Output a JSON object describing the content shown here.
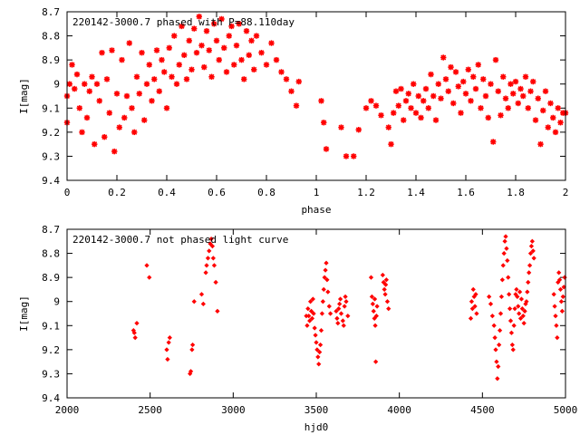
{
  "figure": {
    "background": "#ffffff",
    "marker_color": "#ff0000",
    "panels": [
      "phased",
      "unphased"
    ]
  },
  "chart_data": [
    {
      "type": "scatter",
      "title": "220142-3000.7 phased with P=88.110day",
      "xlabel": "phase",
      "ylabel": "I[mag]",
      "xlim": [
        0,
        2
      ],
      "ylim": [
        9.4,
        8.7
      ],
      "y_inverted": true,
      "xticks": [
        0,
        0.2,
        0.4,
        0.6,
        0.8,
        1,
        1.2,
        1.4,
        1.6,
        1.8,
        2
      ],
      "xtick_labels": [
        "0",
        "0.2",
        "0.4",
        "0.6",
        "0.8",
        "1",
        "1.2",
        "1.4",
        "1.6",
        "1.8",
        "2"
      ],
      "yticks": [
        8.7,
        8.8,
        8.9,
        9.0,
        9.1,
        9.2,
        9.3,
        9.4
      ],
      "ytick_labels": [
        "8.7",
        "8.8",
        "8.9",
        "9",
        "9.1",
        "9.2",
        "9.3",
        "9.4"
      ],
      "grid": false,
      "legend": "none",
      "marker": "star",
      "color": "#ff0000",
      "points": [
        [
          0.0,
          9.05
        ],
        [
          0.0,
          9.16
        ],
        [
          0.01,
          9.0
        ],
        [
          0.02,
          8.92
        ],
        [
          0.03,
          9.02
        ],
        [
          0.04,
          8.96
        ],
        [
          0.05,
          9.1
        ],
        [
          0.06,
          9.2
        ],
        [
          0.07,
          9.0
        ],
        [
          0.08,
          9.14
        ],
        [
          0.09,
          9.03
        ],
        [
          0.1,
          8.97
        ],
        [
          0.11,
          9.25
        ],
        [
          0.12,
          9.0
        ],
        [
          0.13,
          9.07
        ],
        [
          0.14,
          8.87
        ],
        [
          0.15,
          9.22
        ],
        [
          0.16,
          8.98
        ],
        [
          0.17,
          9.12
        ],
        [
          0.18,
          8.86
        ],
        [
          0.19,
          9.28
        ],
        [
          0.2,
          9.04
        ],
        [
          0.21,
          9.18
        ],
        [
          0.22,
          8.9
        ],
        [
          0.23,
          9.14
        ],
        [
          0.24,
          9.05
        ],
        [
          0.25,
          8.83
        ],
        [
          0.26,
          9.1
        ],
        [
          0.27,
          9.2
        ],
        [
          0.28,
          8.97
        ],
        [
          0.29,
          9.04
        ],
        [
          0.3,
          8.87
        ],
        [
          0.31,
          9.15
        ],
        [
          0.32,
          9.0
        ],
        [
          0.33,
          8.92
        ],
        [
          0.34,
          9.07
        ],
        [
          0.35,
          8.98
        ],
        [
          0.36,
          8.86
        ],
        [
          0.37,
          9.03
        ],
        [
          0.38,
          8.9
        ],
        [
          0.39,
          8.95
        ],
        [
          0.4,
          9.1
        ],
        [
          0.41,
          8.85
        ],
        [
          0.42,
          8.97
        ],
        [
          0.43,
          8.8
        ],
        [
          0.44,
          9.0
        ],
        [
          0.45,
          8.92
        ],
        [
          0.46,
          8.76
        ],
        [
          0.47,
          8.88
        ],
        [
          0.48,
          8.98
        ],
        [
          0.49,
          8.82
        ],
        [
          0.5,
          8.94
        ],
        [
          0.51,
          8.77
        ],
        [
          0.52,
          8.87
        ],
        [
          0.53,
          8.72
        ],
        [
          0.54,
          8.84
        ],
        [
          0.55,
          8.93
        ],
        [
          0.56,
          8.78
        ],
        [
          0.57,
          8.86
        ],
        [
          0.58,
          8.97
        ],
        [
          0.59,
          8.75
        ],
        [
          0.6,
          8.82
        ],
        [
          0.61,
          8.9
        ],
        [
          0.62,
          8.73
        ],
        [
          0.63,
          8.85
        ],
        [
          0.64,
          8.95
        ],
        [
          0.65,
          8.8
        ],
        [
          0.66,
          8.76
        ],
        [
          0.67,
          8.92
        ],
        [
          0.68,
          8.84
        ],
        [
          0.69,
          8.75
        ],
        [
          0.7,
          8.9
        ],
        [
          0.71,
          8.98
        ],
        [
          0.72,
          8.78
        ],
        [
          0.73,
          8.88
        ],
        [
          0.74,
          8.82
        ],
        [
          0.75,
          8.94
        ],
        [
          0.76,
          8.8
        ],
        [
          0.78,
          8.87
        ],
        [
          0.8,
          8.92
        ],
        [
          0.82,
          8.83
        ],
        [
          0.84,
          8.9
        ],
        [
          0.86,
          8.95
        ],
        [
          0.88,
          8.98
        ],
        [
          0.9,
          9.03
        ],
        [
          0.92,
          9.09
        ],
        [
          0.93,
          8.99
        ],
        [
          1.02,
          9.07
        ],
        [
          1.03,
          9.16
        ],
        [
          1.04,
          9.27
        ],
        [
          1.1,
          9.18
        ],
        [
          1.12,
          9.3
        ],
        [
          1.15,
          9.3
        ],
        [
          1.17,
          9.19
        ],
        [
          1.2,
          9.1
        ],
        [
          1.22,
          9.07
        ],
        [
          1.24,
          9.09
        ],
        [
          1.26,
          9.13
        ],
        [
          1.29,
          9.18
        ],
        [
          1.3,
          9.25
        ],
        [
          1.31,
          9.12
        ],
        [
          1.32,
          9.03
        ],
        [
          1.33,
          9.09
        ],
        [
          1.34,
          9.02
        ],
        [
          1.35,
          9.15
        ],
        [
          1.36,
          9.07
        ],
        [
          1.37,
          9.04
        ],
        [
          1.38,
          9.1
        ],
        [
          1.39,
          9.0
        ],
        [
          1.4,
          9.12
        ],
        [
          1.41,
          9.05
        ],
        [
          1.42,
          9.14
        ],
        [
          1.43,
          9.07
        ],
        [
          1.44,
          9.02
        ],
        [
          1.45,
          9.1
        ],
        [
          1.46,
          8.96
        ],
        [
          1.47,
          9.05
        ],
        [
          1.48,
          9.15
        ],
        [
          1.49,
          9.0
        ],
        [
          1.5,
          9.06
        ],
        [
          1.51,
          8.89
        ],
        [
          1.52,
          8.98
        ],
        [
          1.53,
          9.03
        ],
        [
          1.54,
          8.93
        ],
        [
          1.55,
          9.08
        ],
        [
          1.56,
          8.95
        ],
        [
          1.57,
          9.01
        ],
        [
          1.58,
          9.12
        ],
        [
          1.59,
          8.99
        ],
        [
          1.6,
          9.04
        ],
        [
          1.61,
          8.94
        ],
        [
          1.62,
          9.07
        ],
        [
          1.63,
          8.97
        ],
        [
          1.64,
          9.02
        ],
        [
          1.65,
          8.92
        ],
        [
          1.66,
          9.1
        ],
        [
          1.67,
          8.98
        ],
        [
          1.68,
          9.05
        ],
        [
          1.69,
          9.14
        ],
        [
          1.7,
          9.0
        ],
        [
          1.71,
          9.24
        ],
        [
          1.72,
          8.9
        ],
        [
          1.73,
          9.03
        ],
        [
          1.74,
          9.13
        ],
        [
          1.75,
          8.97
        ],
        [
          1.76,
          9.06
        ],
        [
          1.77,
          9.1
        ],
        [
          1.78,
          9.0
        ],
        [
          1.79,
          9.04
        ],
        [
          1.8,
          8.99
        ],
        [
          1.81,
          9.08
        ],
        [
          1.82,
          9.02
        ],
        [
          1.83,
          9.05
        ],
        [
          1.84,
          8.97
        ],
        [
          1.85,
          9.1
        ],
        [
          1.86,
          9.03
        ],
        [
          1.87,
          8.99
        ],
        [
          1.88,
          9.15
        ],
        [
          1.89,
          9.06
        ],
        [
          1.9,
          9.25
        ],
        [
          1.91,
          9.11
        ],
        [
          1.92,
          9.03
        ],
        [
          1.93,
          9.18
        ],
        [
          1.94,
          9.08
        ],
        [
          1.95,
          9.14
        ],
        [
          1.96,
          9.2
        ],
        [
          1.97,
          9.1
        ],
        [
          1.98,
          9.16
        ],
        [
          1.99,
          9.12
        ],
        [
          2.0,
          9.12
        ]
      ]
    },
    {
      "type": "scatter",
      "title": "220142-3000.7 not phased light curve",
      "xlabel": "hjd0",
      "ylabel": "I[mag]",
      "xlim": [
        2000,
        5000
      ],
      "ylim": [
        9.4,
        8.7
      ],
      "y_inverted": true,
      "xticks": [
        2000,
        2500,
        3000,
        3500,
        4000,
        4500,
        5000
      ],
      "xtick_labels": [
        "2000",
        "2500",
        "3000",
        "3500",
        "4000",
        "4500",
        "5000"
      ],
      "yticks": [
        8.7,
        8.8,
        8.9,
        9.0,
        9.1,
        9.2,
        9.3,
        9.4
      ],
      "ytick_labels": [
        "8.7",
        "8.8",
        "8.9",
        "9",
        "9.1",
        "9.2",
        "9.3",
        "9.4"
      ],
      "grid": false,
      "legend": "none",
      "marker": "diamond",
      "color": "#ff0000",
      "points": [
        [
          2400,
          9.12
        ],
        [
          2405,
          9.13
        ],
        [
          2410,
          9.15
        ],
        [
          2420,
          9.09
        ],
        [
          2480,
          8.85
        ],
        [
          2495,
          8.9
        ],
        [
          2600,
          9.2
        ],
        [
          2605,
          9.24
        ],
        [
          2612,
          9.17
        ],
        [
          2618,
          9.15
        ],
        [
          2740,
          9.3
        ],
        [
          2745,
          9.29
        ],
        [
          2752,
          9.2
        ],
        [
          2756,
          9.18
        ],
        [
          2765,
          9.0
        ],
        [
          2810,
          8.97
        ],
        [
          2820,
          9.01
        ],
        [
          2835,
          8.88
        ],
        [
          2840,
          8.85
        ],
        [
          2848,
          8.82
        ],
        [
          2855,
          8.79
        ],
        [
          2862,
          8.76
        ],
        [
          2868,
          8.74
        ],
        [
          2875,
          8.77
        ],
        [
          2880,
          8.82
        ],
        [
          2886,
          8.85
        ],
        [
          2895,
          8.92
        ],
        [
          2905,
          9.04
        ],
        [
          3440,
          9.06
        ],
        [
          3445,
          9.1
        ],
        [
          3450,
          9.03
        ],
        [
          3455,
          9.06
        ],
        [
          3460,
          9.08
        ],
        [
          3465,
          9.0
        ],
        [
          3470,
          9.04
        ],
        [
          3475,
          9.07
        ],
        [
          3480,
          8.99
        ],
        [
          3484,
          9.05
        ],
        [
          3490,
          9.11
        ],
        [
          3495,
          9.14
        ],
        [
          3500,
          9.17
        ],
        [
          3505,
          9.2
        ],
        [
          3510,
          9.23
        ],
        [
          3515,
          9.26
        ],
        [
          3520,
          9.21
        ],
        [
          3525,
          9.18
        ],
        [
          3530,
          9.12
        ],
        [
          3535,
          9.05
        ],
        [
          3540,
          9.0
        ],
        [
          3545,
          8.95
        ],
        [
          3550,
          8.9
        ],
        [
          3555,
          8.87
        ],
        [
          3560,
          8.84
        ],
        [
          3565,
          8.91
        ],
        [
          3570,
          8.96
        ],
        [
          3578,
          9.02
        ],
        [
          3585,
          9.05
        ],
        [
          3620,
          9.04
        ],
        [
          3625,
          9.07
        ],
        [
          3630,
          9.09
        ],
        [
          3635,
          9.03
        ],
        [
          3640,
          9.01
        ],
        [
          3645,
          8.99
        ],
        [
          3650,
          9.05
        ],
        [
          3660,
          9.08
        ],
        [
          3665,
          9.1
        ],
        [
          3670,
          9.02
        ],
        [
          3675,
          8.98
        ],
        [
          3680,
          9.0
        ],
        [
          3690,
          9.06
        ],
        [
          3830,
          8.9
        ],
        [
          3835,
          8.98
        ],
        [
          3840,
          9.01
        ],
        [
          3845,
          9.04
        ],
        [
          3850,
          9.07
        ],
        [
          3852,
          8.99
        ],
        [
          3855,
          9.1
        ],
        [
          3858,
          9.25
        ],
        [
          3862,
          9.06
        ],
        [
          3866,
          9.02
        ],
        [
          3900,
          8.89
        ],
        [
          3905,
          8.92
        ],
        [
          3910,
          8.95
        ],
        [
          3915,
          8.97
        ],
        [
          3918,
          8.93
        ],
        [
          3922,
          8.91
        ],
        [
          3928,
          9.0
        ],
        [
          3935,
          9.03
        ],
        [
          4430,
          9.07
        ],
        [
          4435,
          9.0
        ],
        [
          4440,
          9.03
        ],
        [
          4445,
          8.95
        ],
        [
          4450,
          8.98
        ],
        [
          4455,
          9.02
        ],
        [
          4460,
          8.97
        ],
        [
          4465,
          9.05
        ],
        [
          4540,
          8.98
        ],
        [
          4550,
          9.01
        ],
        [
          4560,
          9.06
        ],
        [
          4570,
          9.1
        ],
        [
          4575,
          9.15
        ],
        [
          4580,
          9.2
        ],
        [
          4585,
          9.25
        ],
        [
          4590,
          9.32
        ],
        [
          4595,
          9.27
        ],
        [
          4600,
          9.18
        ],
        [
          4605,
          9.12
        ],
        [
          4610,
          9.05
        ],
        [
          4615,
          8.98
        ],
        [
          4620,
          8.91
        ],
        [
          4625,
          8.85
        ],
        [
          4630,
          8.8
        ],
        [
          4635,
          8.75
        ],
        [
          4640,
          8.73
        ],
        [
          4645,
          8.78
        ],
        [
          4650,
          8.83
        ],
        [
          4655,
          8.9
        ],
        [
          4660,
          8.97
        ],
        [
          4665,
          9.03
        ],
        [
          4670,
          9.08
        ],
        [
          4675,
          9.13
        ],
        [
          4680,
          9.18
        ],
        [
          4685,
          9.2
        ],
        [
          4690,
          9.1
        ],
        [
          4695,
          9.03
        ],
        [
          4700,
          8.97
        ],
        [
          4705,
          8.95
        ],
        [
          4710,
          8.98
        ],
        [
          4715,
          9.02
        ],
        [
          4720,
          9.05
        ],
        [
          4725,
          8.96
        ],
        [
          4730,
          9.07
        ],
        [
          4735,
          8.99
        ],
        [
          4740,
          9.03
        ],
        [
          4745,
          9.06
        ],
        [
          4750,
          9.09
        ],
        [
          4755,
          9.04
        ],
        [
          4760,
          9.01
        ],
        [
          4765,
          9.0
        ],
        [
          4770,
          8.96
        ],
        [
          4775,
          8.92
        ],
        [
          4780,
          8.88
        ],
        [
          4785,
          8.85
        ],
        [
          4790,
          8.8
        ],
        [
          4795,
          8.77
        ],
        [
          4800,
          8.75
        ],
        [
          4805,
          8.79
        ],
        [
          4810,
          8.82
        ],
        [
          4930,
          8.97
        ],
        [
          4935,
          9.02
        ],
        [
          4940,
          9.06
        ],
        [
          4945,
          9.1
        ],
        [
          4950,
          9.15
        ],
        [
          4955,
          8.92
        ],
        [
          4960,
          8.88
        ],
        [
          4965,
          8.91
        ],
        [
          4970,
          8.95
        ],
        [
          4975,
          9.0
        ],
        [
          4980,
          9.04
        ],
        [
          4985,
          8.98
        ],
        [
          4990,
          8.94
        ],
        [
          4995,
          8.9
        ]
      ]
    }
  ]
}
